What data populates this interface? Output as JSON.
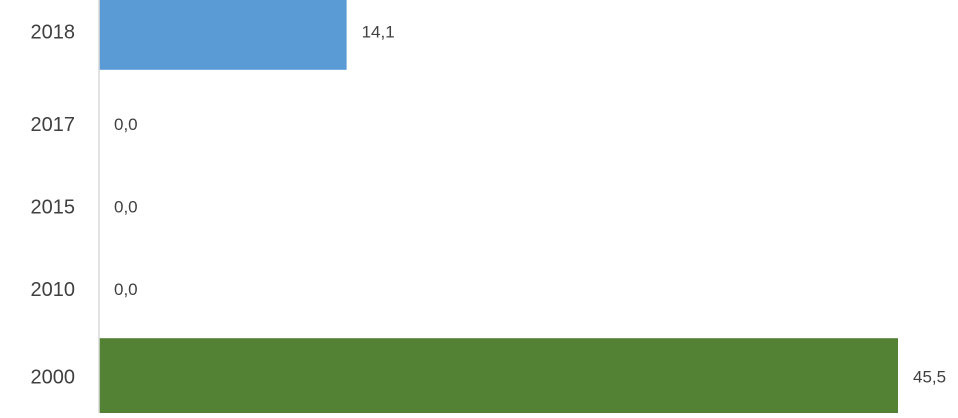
{
  "chart_data": {
    "type": "bar",
    "orientation": "horizontal",
    "categories": [
      "2018",
      "2017",
      "2015",
      "2010",
      "2000"
    ],
    "values": [
      14.1,
      0.0,
      0.0,
      0.0,
      45.5
    ],
    "value_labels": [
      "14,1",
      "0,0",
      "0,0",
      "0,0",
      "45,5"
    ],
    "colors": [
      "#5b9bd5",
      "#5b9bd5",
      "#5b9bd5",
      "#5b9bd5",
      "#548235"
    ],
    "axis_color": "#d9d9d9",
    "title": "",
    "xlabel": "",
    "ylabel": "",
    "xlim": [
      0,
      45.5
    ],
    "grid": false,
    "legend": "none"
  }
}
